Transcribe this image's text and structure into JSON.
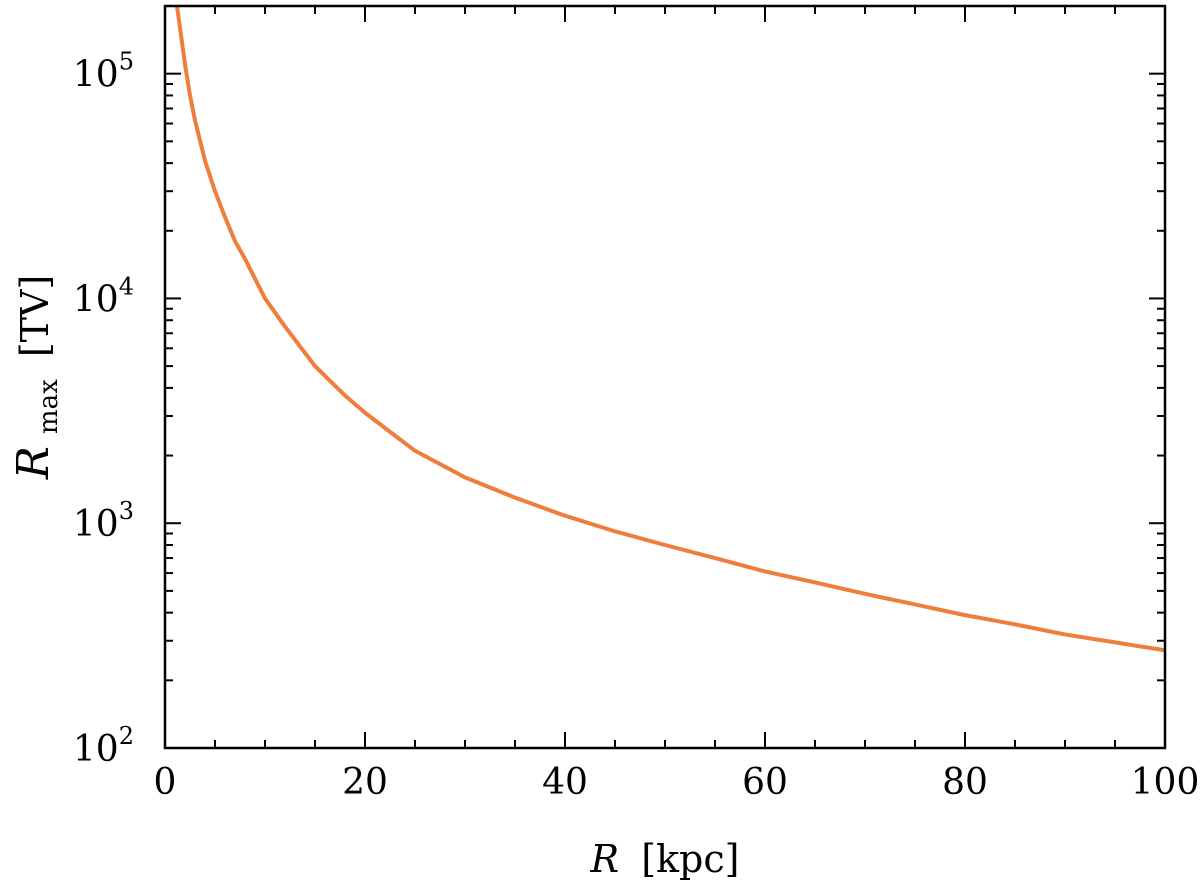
{
  "chart_data": {
    "type": "line",
    "title": "",
    "xlabel": {
      "main": "R",
      "unit": "[kpc]"
    },
    "ylabel": {
      "main": "R",
      "subscript": "max",
      "unit": "[TV]"
    },
    "xlim": [
      0,
      100
    ],
    "ylim": [
      100,
      200000
    ],
    "yscale": "log",
    "grid": false,
    "legend": "none",
    "x_ticks": [
      {
        "value": 0,
        "label": "0"
      },
      {
        "value": 20,
        "label": "20"
      },
      {
        "value": 40,
        "label": "40"
      },
      {
        "value": 60,
        "label": "60"
      },
      {
        "value": 80,
        "label": "80"
      },
      {
        "value": 100,
        "label": "100"
      }
    ],
    "y_ticks": [
      {
        "value": 100,
        "base": "10",
        "exp": "2"
      },
      {
        "value": 1000,
        "base": "10",
        "exp": "3"
      },
      {
        "value": 10000,
        "base": "10",
        "exp": "4"
      },
      {
        "value": 100000,
        "base": "10",
        "exp": "5"
      }
    ],
    "series": [
      {
        "color": "#ef7d3c",
        "x": [
          1.2,
          1.5,
          2,
          2.5,
          3,
          4,
          5,
          6,
          7,
          8,
          10,
          12,
          15,
          18,
          20,
          25,
          30,
          35,
          40,
          45,
          50,
          55,
          60,
          65,
          70,
          75,
          80,
          85,
          90,
          95,
          100
        ],
        "y": [
          200000,
          160000,
          110000,
          80000,
          62000,
          41000,
          30000,
          23000,
          18000,
          15000,
          10000,
          7500,
          5000,
          3700,
          3100,
          2100,
          1600,
          1300,
          1080,
          920,
          800,
          700,
          610,
          545,
          485,
          435,
          390,
          355,
          320,
          295,
          272
        ]
      }
    ]
  }
}
